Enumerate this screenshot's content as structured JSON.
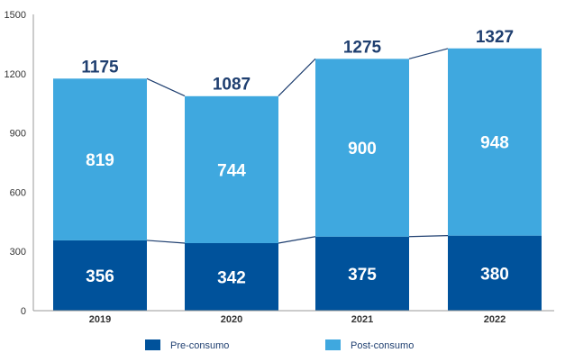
{
  "chart_data": {
    "type": "bar",
    "stacked": true,
    "categories": [
      "2019",
      "2020",
      "2021",
      "2022"
    ],
    "series": [
      {
        "name": "Pre-consumo",
        "values": [
          356,
          342,
          375,
          380
        ],
        "color": "#00529b"
      },
      {
        "name": "Post-consumo",
        "values": [
          819,
          744,
          900,
          948
        ],
        "color": "#3fa8df"
      }
    ],
    "totals": [
      1175,
      1087,
      1275,
      1327
    ],
    "total_label_color": "#1f3f70",
    "ylim": [
      0,
      1500
    ],
    "yticks": [
      "0",
      "300",
      "600",
      "900",
      "1200",
      "1500"
    ],
    "title": "",
    "xlabel": "",
    "ylabel": "",
    "grid": false,
    "legend": "bottom"
  }
}
